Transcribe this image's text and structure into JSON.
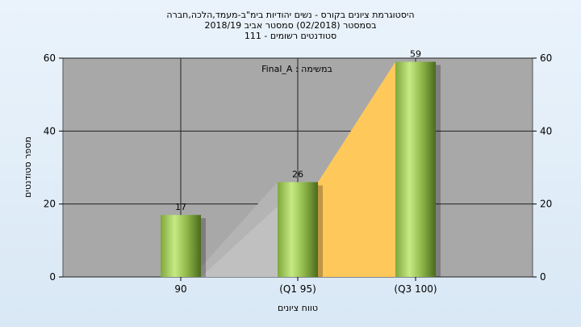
{
  "chart_data": {
    "type": "bar",
    "title_lines": [
      "היסטוגרמת ציונים בקורס - נשים יהודיות בימ\"ב-מעמד,הלכה,חברה",
      "בסמסטר  (02/2018)  סמסטר אביב 2018/19",
      "סטודנטים רשומים - 111"
    ],
    "annotation": "Final_A : במשימה",
    "xlabel": "טווח ציונים",
    "ylabel": "מספר סטודנטים",
    "categories": [
      "90",
      "(Q1 95)",
      "(Q3 100)"
    ],
    "values": [
      17,
      26,
      59
    ],
    "data_labels": [
      "17",
      "26",
      "59"
    ],
    "ylim": [
      0,
      60
    ],
    "yticks": [
      "0",
      "20",
      "40",
      "60"
    ],
    "yticks_right": [
      "0",
      "20",
      "40",
      "60"
    ],
    "grid": true,
    "colors": {
      "plot_bg": "#a8a8a8",
      "bar_light": "#c6ea84",
      "bar_dark": "#4a6a1e",
      "area_shadow": "#c0c0c0",
      "area_fill": "#ffc85a"
    }
  }
}
